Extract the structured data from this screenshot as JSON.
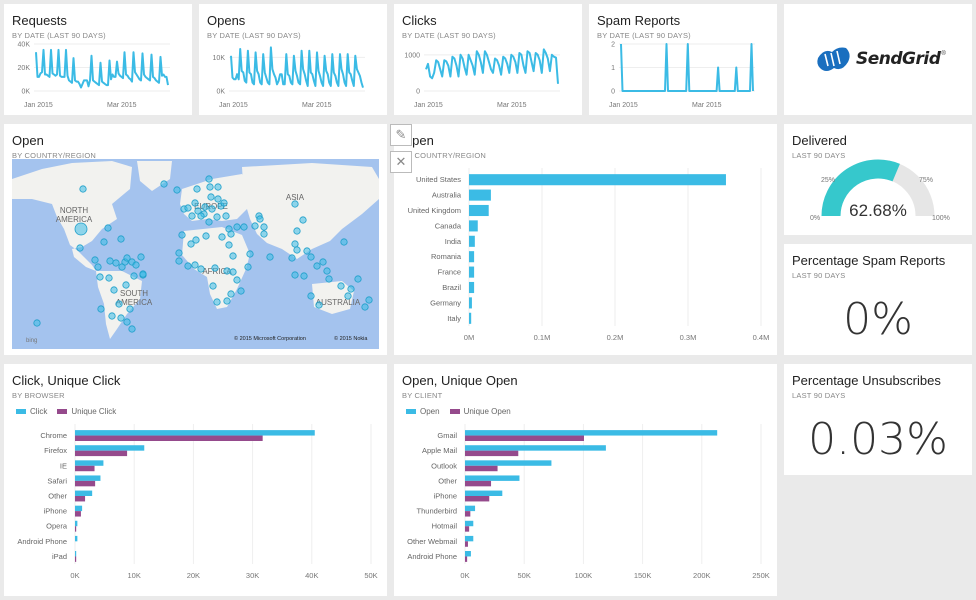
{
  "colors": {
    "primary": "#3bbbe5",
    "secondary": "#954a8c",
    "gauge_fill": "#36c8cc",
    "gauge_track": "#e6e6e6",
    "map_ocean": "#a4c3ee",
    "map_land": "#f2f2ef",
    "map_bubble": "#3bbbe5",
    "logo_blue": "#1a6fbf"
  },
  "tiles": {
    "requests": {
      "title": "Requests",
      "subtitle": "BY DATE (LAST 90 DAYS)"
    },
    "opens": {
      "title": "Opens",
      "subtitle": "BY DATE (LAST 90 DAYS)"
    },
    "clicks": {
      "title": "Clicks",
      "subtitle": "BY DATE (LAST 90 DAYS)"
    },
    "spam": {
      "title": "Spam Reports",
      "subtitle": "BY DATE (LAST 90 DAYS)"
    },
    "logo": {
      "text": "SendGrid",
      "mark": "®"
    },
    "map": {
      "title": "Open",
      "subtitle": "BY COUNTRY/REGION",
      "labels": [
        "NORTH",
        "AMERICA",
        "SOUTH",
        "AMERICA",
        "EUROPE",
        "ASIA",
        "AFRICA",
        "AUSTRALIA"
      ],
      "bing": "bing",
      "copyright_ms": "© 2015 Microsoft Corporation",
      "copyright_nokia": "© 2015 Nokia"
    },
    "country": {
      "title": "Open",
      "subtitle": "BY COUNTRY/REGION",
      "edit_icon": "✎",
      "close_icon": "✕"
    },
    "delivered": {
      "title": "Delivered",
      "subtitle": "LAST 90 DAYS",
      "value_label": "62.68%",
      "value": 0.6268,
      "tick_0": "0%",
      "tick_25": "25%",
      "tick_75": "75%",
      "tick_100": "100%"
    },
    "spam_pct": {
      "title": "Percentage Spam Reports",
      "subtitle": "LAST 90 DAYS",
      "value": "0%"
    },
    "unsub_pct": {
      "title": "Percentage Unsubscribes",
      "subtitle": "LAST 90 DAYS",
      "value": "0.03%"
    },
    "browser": {
      "title": "Click, Unique Click",
      "subtitle": "BY BROWSER",
      "legend": [
        "Click",
        "Unique Click"
      ]
    },
    "client": {
      "title": "Open, Unique Open",
      "subtitle": "BY CLIENT",
      "legend": [
        "Open",
        "Unique Open"
      ]
    }
  },
  "chart_data": [
    {
      "id": "requests",
      "type": "line",
      "title": "Requests",
      "x_tick_labels": [
        "Jan 2015",
        "Mar 2015"
      ],
      "y_tick_labels": [
        "0K",
        "20K",
        "40K"
      ],
      "ylim": [
        0,
        40000
      ],
      "values": [
        33000,
        12000,
        12000,
        15000,
        16000,
        35000,
        14000,
        14000,
        13000,
        12000,
        35000,
        15000,
        14000,
        13000,
        14000,
        35000,
        13000,
        12000,
        12000,
        12000,
        35000,
        13000,
        9000,
        8000,
        7000,
        28000,
        9000,
        8000,
        8000,
        6000,
        3000,
        6000,
        9000,
        9000,
        9000,
        4000,
        9000,
        30000,
        9000,
        8000,
        7000,
        6000,
        5000,
        24000,
        8000,
        7000,
        6000,
        5000,
        5000,
        26000,
        10000,
        14000,
        12000,
        12000,
        25000,
        15000,
        13000,
        12000,
        11000,
        33000,
        14000,
        13000,
        11000,
        10000,
        8000,
        33000,
        16000,
        14000,
        12000,
        10000,
        9000,
        32000,
        14000,
        12000,
        11000,
        10000,
        9000,
        31000,
        12000,
        11000,
        9000,
        8000,
        7000,
        29000,
        13000,
        14000,
        12000,
        12000,
        5000
      ]
    },
    {
      "id": "opens",
      "type": "line",
      "title": "Opens",
      "x_tick_labels": [
        "Jan 2015",
        "Mar 2015"
      ],
      "y_tick_labels": [
        "0K",
        "10K"
      ],
      "ylim": [
        0,
        14000
      ],
      "values": [
        10500,
        4000,
        3500,
        3500,
        5000,
        3500,
        12500,
        6000,
        5500,
        3000,
        2500,
        12000,
        5500,
        5000,
        2500,
        2000,
        11500,
        6000,
        5000,
        2500,
        2000,
        11000,
        5500,
        4000,
        2500,
        2000,
        13000,
        6500,
        5000,
        4000,
        2000,
        3000,
        5000,
        5000,
        2000,
        2000,
        11000,
        5000,
        4500,
        2500,
        2000,
        10500,
        6000,
        4500,
        2500,
        2000,
        12000,
        6500,
        5000,
        3000,
        1500,
        12000,
        5500,
        5000,
        3000,
        1500,
        11500,
        6000,
        4500,
        2500,
        1500,
        10500,
        6000,
        5000,
        2500,
        1500,
        11000,
        5500,
        4500,
        2500,
        1500,
        11000,
        6500,
        5000,
        2500,
        1500,
        11000,
        5500,
        5000,
        3000,
        1500,
        10500,
        6500,
        5500,
        4500,
        2500,
        1000
      ]
    },
    {
      "id": "clicks",
      "type": "line",
      "title": "Clicks",
      "x_tick_labels": [
        "Jan 2015",
        "Mar 2015"
      ],
      "y_tick_labels": [
        "0",
        "1000"
      ],
      "ylim": [
        0,
        1300
      ],
      "values": [
        600,
        750,
        400,
        350,
        500,
        850,
        800,
        600,
        400,
        850,
        820,
        700,
        400,
        950,
        900,
        700,
        400,
        1000,
        900,
        650,
        450,
        1000,
        850,
        700,
        450,
        1100,
        1000,
        800,
        500,
        1100,
        1000,
        800,
        600,
        500,
        900,
        850,
        700,
        450,
        950,
        900,
        750,
        500,
        1000,
        950,
        800,
        500,
        1050,
        1000,
        700,
        500,
        1100,
        1050,
        800,
        550,
        1050,
        1000,
        850,
        500,
        1150,
        1050,
        900,
        550,
        1000,
        950,
        920,
        200
      ]
    },
    {
      "id": "spam",
      "type": "line",
      "title": "Spam Reports",
      "x_tick_labels": [
        "Jan 2015",
        "Mar 2015"
      ],
      "y_tick_labels": [
        "0",
        "1",
        "2"
      ],
      "ylim": [
        0,
        2
      ],
      "values": [
        2,
        0,
        0,
        0,
        0,
        0,
        0,
        0,
        0,
        0,
        0,
        0,
        0,
        0,
        0,
        0,
        0,
        0,
        0,
        0,
        0,
        0,
        0,
        0,
        0,
        0,
        0,
        0,
        0,
        0,
        2,
        0,
        0,
        0,
        0,
        0,
        0,
        0,
        0,
        0,
        0,
        0,
        0,
        0,
        2,
        0,
        0,
        0,
        0,
        0,
        0,
        0,
        0,
        0,
        0,
        0,
        0,
        0,
        0,
        0,
        0,
        0,
        0,
        0,
        1,
        0,
        0,
        0,
        0,
        0,
        0,
        0,
        0,
        0,
        0,
        0,
        1,
        0,
        0,
        0,
        0,
        0,
        0,
        0,
        0,
        0,
        2,
        0
      ]
    },
    {
      "id": "country",
      "type": "bar",
      "title": "Open",
      "subtitle": "BY COUNTRY/REGION",
      "categories": [
        "United States",
        "Australia",
        "United Kingdom",
        "Canada",
        "India",
        "Romania",
        "France",
        "Brazil",
        "Germany",
        "Italy"
      ],
      "values": [
        352000,
        30000,
        27000,
        12000,
        8000,
        7000,
        7000,
        7000,
        4000,
        3000
      ],
      "x_tick_labels": [
        "0M",
        "0.1M",
        "0.2M",
        "0.3M",
        "0.4M"
      ],
      "xlim": [
        0,
        400000
      ],
      "orientation": "horizontal"
    },
    {
      "id": "browser",
      "type": "bar",
      "title": "Click, Unique Click",
      "subtitle": "BY BROWSER",
      "categories": [
        "Chrome",
        "Firefox",
        "IE",
        "Safari",
        "Other",
        "iPhone",
        "Opera",
        "Android Phone",
        "iPad"
      ],
      "series": [
        {
          "name": "Click",
          "values": [
            40500,
            11700,
            4800,
            4300,
            2900,
            1200,
            400,
            400,
            200
          ]
        },
        {
          "name": "Unique Click",
          "values": [
            31700,
            8800,
            3300,
            3400,
            1700,
            1000,
            200,
            0,
            200
          ]
        }
      ],
      "x_tick_labels": [
        "0K",
        "10K",
        "20K",
        "30K",
        "40K",
        "50K"
      ],
      "xlim": [
        0,
        50000
      ],
      "legend": "top-left",
      "orientation": "horizontal"
    },
    {
      "id": "client",
      "type": "bar",
      "title": "Open, Unique Open",
      "subtitle": "BY CLIENT",
      "categories": [
        "Gmail",
        "Apple Mail",
        "Outlook",
        "Other",
        "iPhone",
        "Thunderbird",
        "Hotmail",
        "Other Webmail",
        "Android Phone"
      ],
      "series": [
        {
          "name": "Open",
          "values": [
            213000,
            119000,
            73000,
            46000,
            31500,
            8500,
            7000,
            7000,
            5000
          ]
        },
        {
          "name": "Unique Open",
          "values": [
            100500,
            45000,
            27500,
            22000,
            20500,
            4500,
            3500,
            2500,
            1800
          ]
        }
      ],
      "x_tick_labels": [
        "0K",
        "50K",
        "100K",
        "150K",
        "200K",
        "250K"
      ],
      "xlim": [
        0,
        250000
      ],
      "legend": "top-left",
      "orientation": "horizontal"
    }
  ]
}
